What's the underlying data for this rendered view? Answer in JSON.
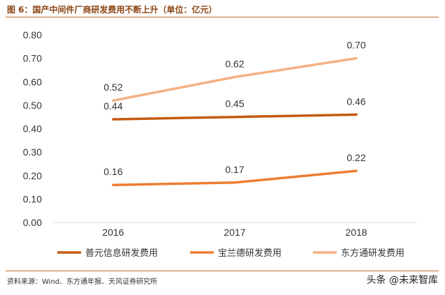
{
  "header": {
    "title": "图 6：国产中间件厂商研发费用不断上升（单位：亿元）"
  },
  "footer": {
    "source": "资料来源：Wind、东方通年报、天风证券研究所",
    "watermark": "头条 @未来智库"
  },
  "colors": {
    "rule": "#C0652B",
    "axis": "#D9D9D9"
  },
  "chart_data": {
    "type": "line",
    "title": "",
    "xlabel": "",
    "ylabel": "",
    "categories": [
      "2016",
      "2017",
      "2018"
    ],
    "ylim": [
      0,
      0.8
    ],
    "yticks": [
      "0.00",
      "0.10",
      "0.20",
      "0.30",
      "0.40",
      "0.50",
      "0.60",
      "0.70",
      "0.80"
    ],
    "grid": false,
    "legend": "bottom",
    "series": [
      {
        "name": "普元信息研发费用",
        "values": [
          0.44,
          0.45,
          0.46
        ],
        "labels": [
          "0.44",
          "0.45",
          "0.46"
        ],
        "color": "#C55A11"
      },
      {
        "name": "宝兰德研发费用",
        "values": [
          0.16,
          0.17,
          0.22
        ],
        "labels": [
          "0.16",
          "0.17",
          "0.22"
        ],
        "color": "#ED7D31"
      },
      {
        "name": "东方通研发费用",
        "values": [
          0.52,
          0.62,
          0.7
        ],
        "labels": [
          "0.52",
          "0.62",
          "0.70"
        ],
        "color": "#F4B183"
      }
    ]
  }
}
